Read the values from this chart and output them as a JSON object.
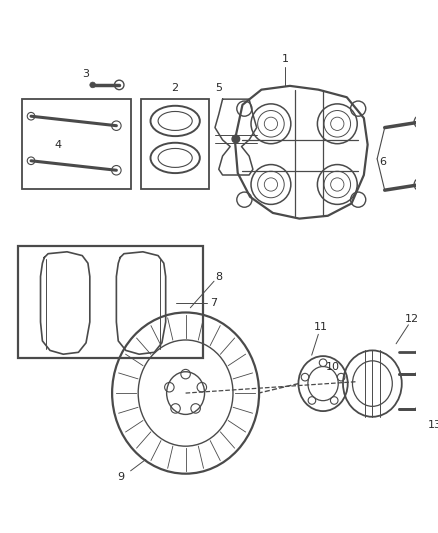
{
  "bg_color": "#ffffff",
  "line_color": "#4a4a4a",
  "label_color": "#2a2a2a",
  "fig_width": 4.38,
  "fig_height": 5.33,
  "dpi": 100
}
